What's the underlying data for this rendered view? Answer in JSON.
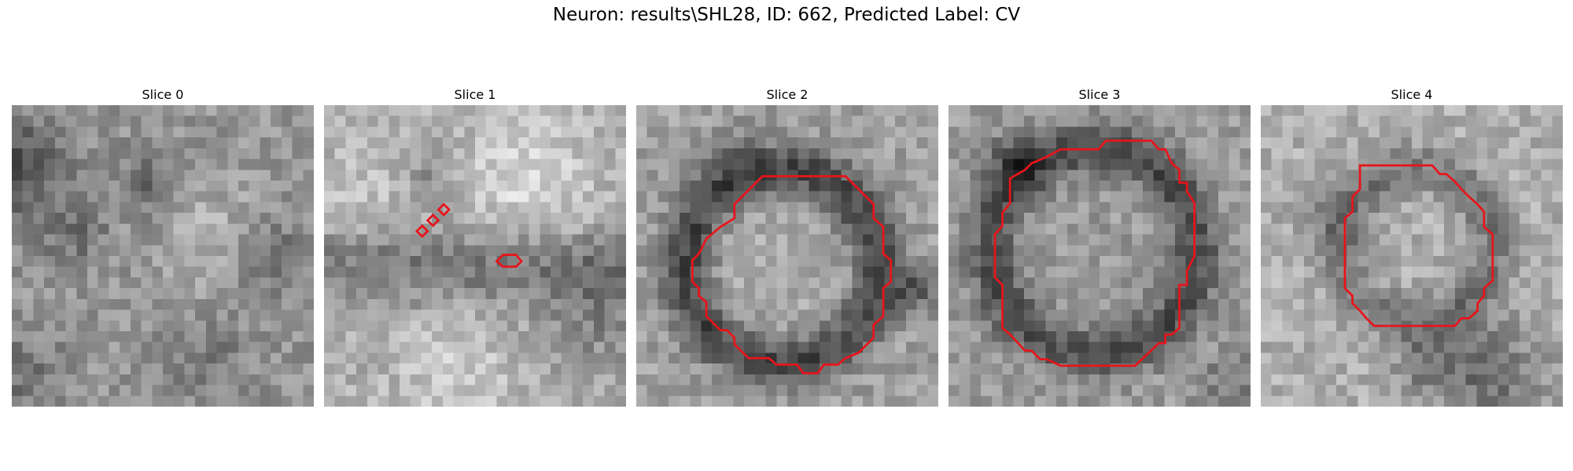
{
  "figure": {
    "title": "Neuron: results\\SHL28, ID: 662, Predicted Label: CV"
  },
  "colors": {
    "contour": "#e8141a",
    "background": "#ffffff"
  },
  "slices": [
    {
      "label": "Slice 0",
      "contours": []
    },
    {
      "label": "Slice 1",
      "contours": [
        [
          [
            8.6,
            11.7
          ],
          [
            9.1,
            11.2
          ],
          [
            9.6,
            11.7
          ],
          [
            9.1,
            12.2
          ]
        ],
        [
          [
            9.6,
            10.7
          ],
          [
            10.1,
            10.2
          ],
          [
            10.6,
            10.7
          ],
          [
            10.1,
            11.2
          ]
        ],
        [
          [
            10.6,
            9.7
          ],
          [
            11.1,
            9.2
          ],
          [
            11.6,
            9.7
          ],
          [
            11.1,
            10.2
          ]
        ],
        [
          [
            16.0,
            14.5
          ],
          [
            16.6,
            13.9
          ],
          [
            17.8,
            13.9
          ],
          [
            18.3,
            14.5
          ],
          [
            17.8,
            15.0
          ],
          [
            16.6,
            15.0
          ]
        ]
      ]
    },
    {
      "label": "Slice 2",
      "contours": [
        [
          [
            13,
            6.6
          ],
          [
            19.4,
            6.6
          ],
          [
            22,
            9.2
          ],
          [
            22,
            10.5
          ],
          [
            22.9,
            11.3
          ],
          [
            22.9,
            13.8
          ],
          [
            23.6,
            14.4
          ],
          [
            23.6,
            16.4
          ],
          [
            22.9,
            17.0
          ],
          [
            22.9,
            19.6
          ],
          [
            22,
            20.4
          ],
          [
            22,
            21.6
          ],
          [
            20.6,
            23.0
          ],
          [
            19.4,
            23.5
          ],
          [
            18.7,
            24.1
          ],
          [
            17.4,
            24.1
          ],
          [
            16.8,
            24.9
          ],
          [
            15.5,
            24.9
          ],
          [
            14.9,
            24.1
          ],
          [
            13,
            24.1
          ],
          [
            12.3,
            23.5
          ],
          [
            10.4,
            23.5
          ],
          [
            9.1,
            22.2
          ],
          [
            9.1,
            21.6
          ],
          [
            8.4,
            20.9
          ],
          [
            7.8,
            20.9
          ],
          [
            6.5,
            19.6
          ],
          [
            6.5,
            18.3
          ],
          [
            5.8,
            17.7
          ],
          [
            5.8,
            17.0
          ],
          [
            5.2,
            16.4
          ],
          [
            5.2,
            14.4
          ],
          [
            5.8,
            13.8
          ],
          [
            6.5,
            12.4
          ],
          [
            7.8,
            11.3
          ],
          [
            9.1,
            10.5
          ],
          [
            9.1,
            9.2
          ],
          [
            11.7,
            6.6
          ]
        ]
      ]
    },
    {
      "label": "Slice 3",
      "contours": [
        [
          [
            11.1,
            4.1
          ],
          [
            13.9,
            4.1
          ],
          [
            14.6,
            3.3
          ],
          [
            18.8,
            3.3
          ],
          [
            19.5,
            4.1
          ],
          [
            20.1,
            4.1
          ],
          [
            20.7,
            5.4
          ],
          [
            21.4,
            6.0
          ],
          [
            21.4,
            7.2
          ],
          [
            22.1,
            7.2
          ],
          [
            22.1,
            8.0
          ],
          [
            22.8,
            9.1
          ],
          [
            22.8,
            14.0
          ],
          [
            22.1,
            15.4
          ],
          [
            22.1,
            16.7
          ],
          [
            21.4,
            16.7
          ],
          [
            21.4,
            20.7
          ],
          [
            20.7,
            21.3
          ],
          [
            20.1,
            21.3
          ],
          [
            20.1,
            22.1
          ],
          [
            19.5,
            22.1
          ],
          [
            17.3,
            24.2
          ],
          [
            10.4,
            24.2
          ],
          [
            9.1,
            23.6
          ],
          [
            8.5,
            23.6
          ],
          [
            7.7,
            22.8
          ],
          [
            7.1,
            22.8
          ],
          [
            5.7,
            21.3
          ],
          [
            5.0,
            20.7
          ],
          [
            5.0,
            16.7
          ],
          [
            4.3,
            16.0
          ],
          [
            4.3,
            12.0
          ],
          [
            5.0,
            11.2
          ],
          [
            5.0,
            10.0
          ],
          [
            5.7,
            9.1
          ],
          [
            5.7,
            6.8
          ],
          [
            7.1,
            6.0
          ],
          [
            7.7,
            5.4
          ],
          [
            9.1,
            4.8
          ],
          [
            10.4,
            4.1
          ]
        ]
      ]
    },
    {
      "label": "Slice 4",
      "contours": [
        [
          [
            9.2,
            5.6
          ],
          [
            15.9,
            5.6
          ],
          [
            16.6,
            6.4
          ],
          [
            17.2,
            6.4
          ],
          [
            18.0,
            7.1
          ],
          [
            18.6,
            7.8
          ],
          [
            19.3,
            8.5
          ],
          [
            20.1,
            9.2
          ],
          [
            20.7,
            9.9
          ],
          [
            20.7,
            11.3
          ],
          [
            21.5,
            12.0
          ],
          [
            21.5,
            16.3
          ],
          [
            20.7,
            17.0
          ],
          [
            20.7,
            17.7
          ],
          [
            20.1,
            18.4
          ],
          [
            20.1,
            19.1
          ],
          [
            19.3,
            19.8
          ],
          [
            18.6,
            19.8
          ],
          [
            18.0,
            20.5
          ],
          [
            10.5,
            20.5
          ],
          [
            9.8,
            19.8
          ],
          [
            9.2,
            19.1
          ],
          [
            8.5,
            18.4
          ],
          [
            8.5,
            17.7
          ],
          [
            7.8,
            17.0
          ],
          [
            7.8,
            10.5
          ],
          [
            8.5,
            9.9
          ],
          [
            8.5,
            8.5
          ],
          [
            9.2,
            7.8
          ]
        ]
      ]
    }
  ]
}
